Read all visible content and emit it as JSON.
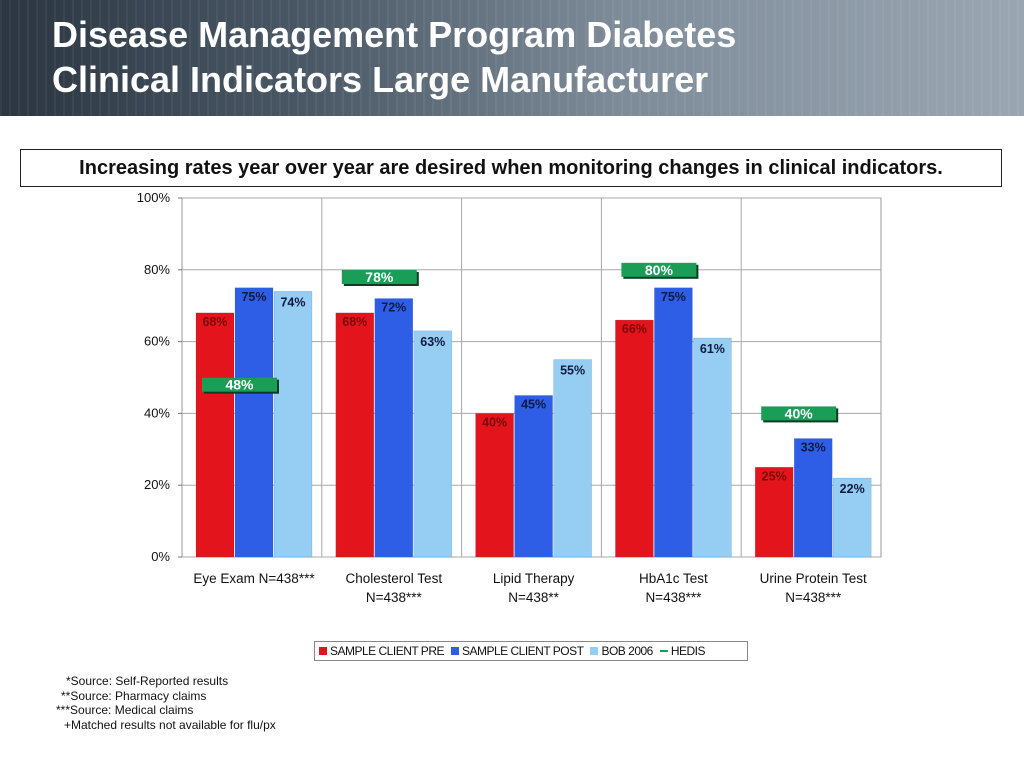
{
  "title": {
    "line1": "Disease Management Program Diabetes",
    "line2": "Clinical Indicators Large Manufacturer"
  },
  "banner": "Increasing rates year over year are desired when monitoring changes in clinical indicators.",
  "chart_data": {
    "type": "bar",
    "categories": [
      [
        "Eye Exam N=438***"
      ],
      [
        "Cholesterol Test",
        "N=438***"
      ],
      [
        "Lipid Therapy",
        "N=438**"
      ],
      [
        "HbA1c Test",
        "N=438***"
      ],
      [
        "Urine Protein Test",
        "N=438***"
      ]
    ],
    "series": [
      {
        "name": "SAMPLE CLIENT PRE",
        "color": "#e3141b",
        "values": [
          68,
          68,
          40,
          66,
          25
        ]
      },
      {
        "name": "SAMPLE CLIENT POST",
        "color": "#2f5ee6",
        "values": [
          75,
          72,
          45,
          75,
          33
        ]
      },
      {
        "name": "BOB 2006",
        "color": "#95cdf3",
        "values": [
          74,
          63,
          55,
          61,
          22
        ]
      }
    ],
    "value_labels": [
      [
        "68%",
        "75%",
        "74%"
      ],
      [
        "68%",
        "72%",
        "63%"
      ],
      [
        "40%",
        "45%",
        "55%"
      ],
      [
        "66%",
        "75%",
        "61%"
      ],
      [
        "25%",
        "33%",
        "22%"
      ]
    ],
    "hedis": {
      "name": "HEDIS",
      "color": "#1a9e57",
      "values": [
        48,
        78,
        null,
        80,
        40
      ],
      "labels": [
        "48%",
        "78%",
        "",
        "80%",
        "40%"
      ]
    },
    "ylim": [
      0,
      100
    ],
    "yticks": [
      0,
      20,
      40,
      60,
      80,
      100
    ],
    "ytick_labels": [
      "0%",
      "20%",
      "40%",
      "60%",
      "80%",
      "100%"
    ],
    "grid": true,
    "legend_position": "bottom"
  },
  "footnotes": [
    "*Source: Self-Reported results",
    "**Source: Pharmacy claims",
    "***Source: Medical claims",
    "+Matched results not available for flu/px"
  ]
}
